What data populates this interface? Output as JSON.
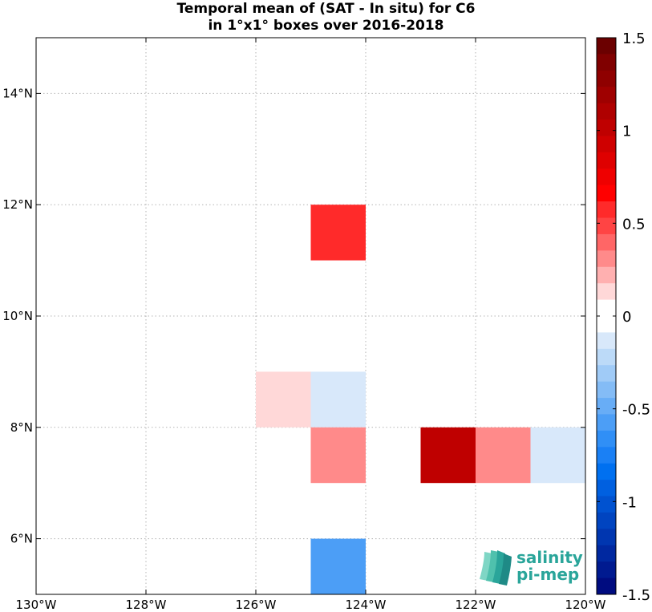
{
  "title": {
    "line1": "Temporal mean of (SAT - In situ) for C6",
    "line2": "in 1°x1° boxes over 2016-2018"
  },
  "map": {
    "lon_range": [
      -130,
      -120
    ],
    "lat_range": [
      5,
      15
    ],
    "x_ticks": [
      {
        "value": -130,
        "label": "130°W"
      },
      {
        "value": -128,
        "label": "128°W"
      },
      {
        "value": -126,
        "label": "126°W"
      },
      {
        "value": -124,
        "label": "124°W"
      },
      {
        "value": -122,
        "label": "122°W"
      },
      {
        "value": -120,
        "label": "120°W"
      }
    ],
    "y_ticks": [
      {
        "value": 6,
        "label": "6°N"
      },
      {
        "value": 8,
        "label": "8°N"
      },
      {
        "value": 10,
        "label": "10°N"
      },
      {
        "value": 12,
        "label": "12°N"
      },
      {
        "value": 14,
        "label": "14°N"
      }
    ],
    "grid": true
  },
  "chart_data": {
    "type": "heatmap",
    "cell_size_deg": 1,
    "cells": [
      {
        "lon0": -125,
        "lat0": 11,
        "value": 0.6
      },
      {
        "lon0": -126,
        "lat0": 8,
        "value": 0.15
      },
      {
        "lon0": -125,
        "lat0": 8,
        "value": -0.1
      },
      {
        "lon0": -125,
        "lat0": 7,
        "value": 0.3
      },
      {
        "lon0": -123,
        "lat0": 7,
        "value": 1.05
      },
      {
        "lon0": -122,
        "lat0": 7,
        "value": 0.3
      },
      {
        "lon0": -121,
        "lat0": 7,
        "value": -0.1
      },
      {
        "lon0": -125,
        "lat0": 5,
        "value": -0.55
      }
    ]
  },
  "colorbar": {
    "range": [
      -1.5,
      1.5
    ],
    "ticks": [
      {
        "value": 1.5,
        "label": "1.5"
      },
      {
        "value": 1,
        "label": "1"
      },
      {
        "value": 0.5,
        "label": "0.5"
      },
      {
        "value": 0,
        "label": "0"
      },
      {
        "value": -0.5,
        "label": "-0.5"
      },
      {
        "value": -1,
        "label": "-1"
      },
      {
        "value": -1.5,
        "label": "-1.5"
      }
    ],
    "colors_top_to_bottom": [
      "#6b0000",
      "#800000",
      "#8f0000",
      "#9f0000",
      "#af0000",
      "#bf0000",
      "#cf0000",
      "#df0000",
      "#ef0000",
      "#ff0000",
      "#ff2a2a",
      "#ff4444",
      "#ff6666",
      "#ff8a8a",
      "#ffb0b0",
      "#ffd8d8",
      "#ffffff",
      "#ffffff",
      "#d8e8fa",
      "#bcdaf8",
      "#a0cbf7",
      "#84bcf6",
      "#68adf6",
      "#4c9ef6",
      "#308ff6",
      "#1a80f5",
      "#0070f0",
      "#0060e0",
      "#0052d0",
      "#0044c0",
      "#0036b0",
      "#0028a0",
      "#001a90",
      "#000c80"
    ]
  },
  "logo": {
    "line1": "salinity",
    "line2": "pi-mep",
    "color": "#2aa59a"
  }
}
